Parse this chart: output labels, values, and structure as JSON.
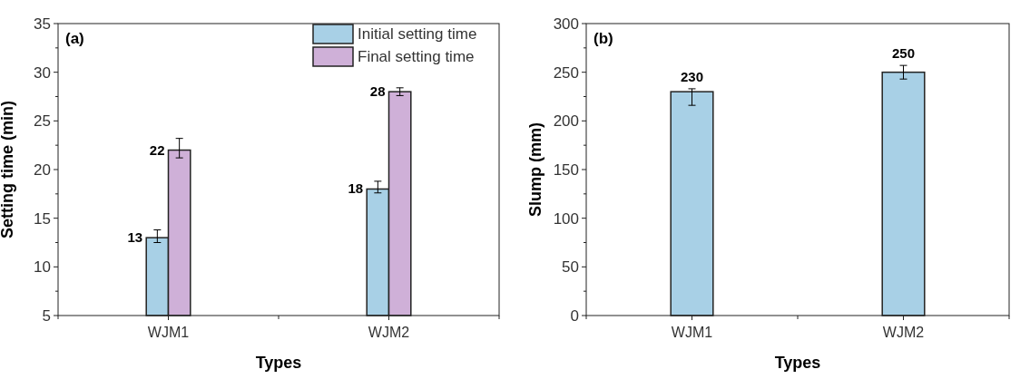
{
  "chart_data": [
    {
      "type": "bar",
      "xlabel": "Types",
      "ylabel": "Setting time (min)",
      "annotations": [
        "(a)"
      ],
      "categories": [
        "WJM1",
        "WJM2"
      ],
      "series": [
        {
          "name": "Initial setting time",
          "color": "#a8d0e6",
          "values": [
            13,
            18
          ],
          "errors": [
            [
              12.5,
              13.8
            ],
            [
              17.6,
              18.8
            ]
          ]
        },
        {
          "name": "Final setting time",
          "color": "#cfb0d8",
          "values": [
            22,
            28
          ],
          "errors": [
            [
              21.2,
              23.2
            ],
            [
              27.6,
              28.4
            ]
          ]
        }
      ],
      "ylim": [
        5,
        35
      ],
      "yticks": [
        5,
        10,
        15,
        20,
        25,
        30,
        35
      ],
      "legend": "top right",
      "data_labels": true,
      "grid": false
    },
    {
      "type": "bar",
      "xlabel": "Types",
      "ylabel": "Slump (mm)",
      "annotations": [
        "(b)"
      ],
      "categories": [
        "WJM1",
        "WJM2"
      ],
      "series": [
        {
          "color": "#a8d0e6",
          "values": [
            230,
            250
          ],
          "errors": [
            [
              216,
              233
            ],
            [
              243,
              257
            ]
          ]
        }
      ],
      "ylim": [
        0,
        300
      ],
      "yticks": [
        0,
        50,
        100,
        150,
        200,
        250,
        300
      ],
      "legend": false,
      "data_labels": true,
      "grid": false
    }
  ]
}
